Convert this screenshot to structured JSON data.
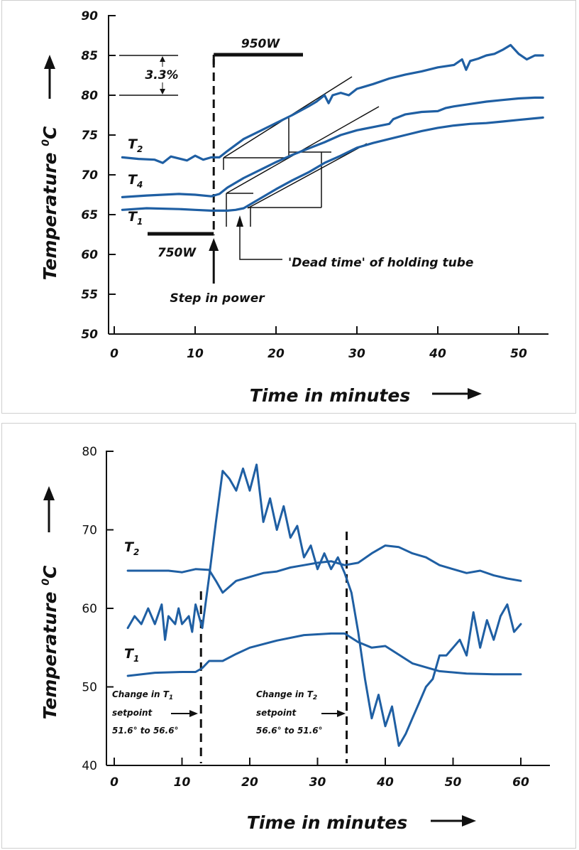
{
  "chart_data": [
    {
      "type": "line",
      "title": "",
      "xlabel": "Time in minutes",
      "ylabel": "Temperature",
      "ylabel_unit": "C",
      "ylabel_unit_sup": "0",
      "xlim": [
        0,
        54
      ],
      "ylim": [
        50,
        90
      ],
      "xticks": [
        "0",
        "10",
        "20",
        "30",
        "40",
        "50"
      ],
      "yticks": [
        "90",
        "85",
        "80",
        "75",
        "70",
        "65",
        "60",
        "55",
        "50"
      ],
      "grid": false,
      "labels": {
        "T2": {
          "main": "T",
          "sub": "2"
        },
        "T4": {
          "main": "T",
          "sub": "4"
        },
        "T1": {
          "main": "T",
          "sub": "1"
        },
        "power_low": "750W",
        "power_high": "950W",
        "step": "Step in power",
        "dead_time": "'Dead time' of holding tube",
        "band": "3.3%"
      },
      "series": [
        {
          "name": "T2",
          "x": [
            1,
            3,
            5,
            6,
            7,
            9,
            10,
            11,
            12,
            13,
            14,
            16,
            18,
            20,
            22,
            24,
            25,
            26,
            26.5,
            27,
            28,
            29,
            30,
            32,
            34,
            36,
            38,
            40,
            42,
            43,
            43.5,
            44,
            45,
            46,
            47,
            48,
            49,
            50,
            51,
            52,
            53
          ],
          "y": [
            72.2,
            72.0,
            71.9,
            71.5,
            72.3,
            71.8,
            72.4,
            71.9,
            72.2,
            72.2,
            73.0,
            74.5,
            75.5,
            76.5,
            77.5,
            78.6,
            79.2,
            80.0,
            79.0,
            80.0,
            80.3,
            80.0,
            80.8,
            81.4,
            82.1,
            82.6,
            83.0,
            83.5,
            83.8,
            84.5,
            83.2,
            84.3,
            84.6,
            85.0,
            85.2,
            85.7,
            86.3,
            85.2,
            84.5,
            85.0,
            85.0
          ]
        },
        {
          "name": "T4",
          "x": [
            1,
            4,
            8,
            10,
            12,
            13,
            14,
            16,
            18,
            20,
            22,
            24,
            26,
            28,
            30,
            32,
            34,
            34.5,
            36,
            38,
            40,
            41,
            42,
            44,
            46,
            48,
            50,
            52,
            53
          ],
          "y": [
            67.2,
            67.4,
            67.6,
            67.5,
            67.3,
            67.6,
            68.4,
            69.6,
            70.6,
            71.6,
            72.5,
            73.3,
            74.1,
            75.0,
            75.6,
            76.0,
            76.4,
            77.0,
            77.6,
            77.9,
            78.0,
            78.4,
            78.6,
            78.9,
            79.2,
            79.4,
            79.6,
            79.7,
            79.7
          ]
        },
        {
          "name": "T1",
          "x": [
            1,
            4,
            8,
            10,
            12,
            14,
            15,
            16,
            18,
            20,
            22,
            24,
            26,
            28,
            30,
            32,
            34,
            36,
            38,
            40,
            42,
            44,
            46,
            48,
            50,
            52,
            53
          ],
          "y": [
            65.6,
            65.8,
            65.7,
            65.6,
            65.5,
            65.5,
            65.6,
            65.8,
            67.0,
            68.2,
            69.3,
            70.3,
            71.5,
            72.4,
            73.4,
            74.0,
            74.5,
            75.0,
            75.5,
            75.9,
            76.2,
            76.4,
            76.5,
            76.7,
            76.9,
            77.1,
            77.2
          ]
        }
      ]
    },
    {
      "type": "line",
      "title": "",
      "xlabel": "Time in minutes",
      "ylabel": "Temperature",
      "ylabel_unit": "C",
      "ylabel_unit_sup": "0",
      "xlim": [
        -1,
        64
      ],
      "ylim": [
        40,
        80
      ],
      "xticks": [
        "0",
        "10",
        "20",
        "30",
        "40",
        "50",
        "60"
      ],
      "yticks": [
        "80",
        "70",
        "60",
        "50",
        "40"
      ],
      "grid": false,
      "labels": {
        "T2": {
          "main": "T",
          "sub": "2"
        },
        "T1": {
          "main": "T",
          "sub": "1"
        },
        "change1": [
          "Change in T1",
          "setpoint",
          "51.6° to 56.6°"
        ],
        "change2": [
          "Change in T2",
          "setpoint",
          "56.6° to 51.6°"
        ]
      },
      "series": [
        {
          "name": "T2",
          "x": [
            2,
            5,
            8,
            10,
            12,
            14,
            15,
            16,
            18,
            20,
            22,
            24,
            26,
            28,
            30,
            32,
            34,
            36,
            38,
            40,
            42,
            44,
            46,
            48,
            50,
            52,
            54,
            56,
            58,
            60
          ],
          "y": [
            64.8,
            64.8,
            64.8,
            64.6,
            65.0,
            64.9,
            63.5,
            62.0,
            63.5,
            64.0,
            64.5,
            64.7,
            65.2,
            65.5,
            65.8,
            66.0,
            65.5,
            65.8,
            67.0,
            68.0,
            67.8,
            67.0,
            66.5,
            65.5,
            65.0,
            64.5,
            64.8,
            64.2,
            63.8,
            63.5
          ]
        },
        {
          "name": "T1",
          "x": [
            2,
            6,
            10,
            12,
            13,
            14,
            16,
            18,
            20,
            24,
            28,
            32,
            34,
            36,
            38,
            40,
            44,
            48,
            52,
            56,
            60
          ],
          "y": [
            51.4,
            51.8,
            51.9,
            51.9,
            52.4,
            53.3,
            53.3,
            54.2,
            55.0,
            55.9,
            56.6,
            56.8,
            56.8,
            55.7,
            55.0,
            55.2,
            53.0,
            52.0,
            51.7,
            51.6,
            51.6
          ]
        },
        {
          "name": "",
          "x": [
            2,
            3,
            4,
            5,
            6,
            7,
            7.5,
            8,
            9,
            9.5,
            10,
            11,
            11.5,
            12,
            13,
            14,
            15,
            16,
            17,
            18,
            19,
            20,
            21,
            22,
            23,
            24,
            25,
            26,
            27,
            28,
            29,
            30,
            31,
            32,
            33,
            34,
            35,
            36,
            37,
            38,
            39,
            40,
            41,
            42,
            43,
            44,
            45,
            46,
            47,
            48,
            49,
            50,
            51,
            52,
            53,
            54,
            55,
            56,
            57,
            58,
            59,
            60
          ],
          "y": [
            57.5,
            59.0,
            58.0,
            60.0,
            58.0,
            60.5,
            56.0,
            59.0,
            58.0,
            60.0,
            58.0,
            59.0,
            57.0,
            60.5,
            57.5,
            64.0,
            71.0,
            77.5,
            76.5,
            75.0,
            77.8,
            75.0,
            78.3,
            71.0,
            74.0,
            70.0,
            73.0,
            69.0,
            70.5,
            66.5,
            68.0,
            65.0,
            67.0,
            65.0,
            66.5,
            64.5,
            62.0,
            57.0,
            51.0,
            46.0,
            49.0,
            45.0,
            47.5,
            42.5,
            44.0,
            46.0,
            48.0,
            50.0,
            51.0,
            54.0,
            54.0,
            55.0,
            56.0,
            54.0,
            59.5,
            55.0,
            58.5,
            56.0,
            59.0,
            60.5,
            57.0,
            58.0
          ]
        }
      ]
    }
  ]
}
